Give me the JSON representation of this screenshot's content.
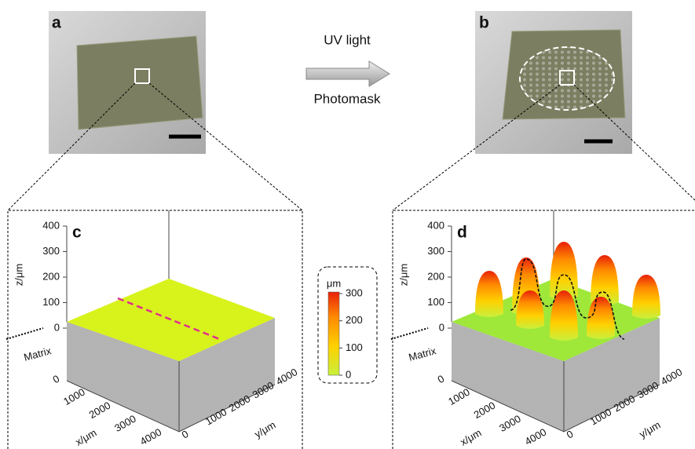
{
  "photos": [
    {
      "label": "a"
    },
    {
      "label": "b"
    }
  ],
  "arrow": {
    "top": "UV light",
    "bottom": "Photomask"
  },
  "plots": [
    {
      "label": "c",
      "z_label": "z/μm",
      "z_ticks": [
        0,
        100,
        200,
        300,
        400
      ],
      "zero_label": 0,
      "matrix_label": "Matrix",
      "x_label": "x/μm",
      "x_ticks": [
        0,
        1000,
        2000,
        3000,
        4000
      ],
      "y_label": "y/μm",
      "y_ticks": [
        0,
        1000,
        2000,
        3000,
        4000
      ]
    },
    {
      "label": "d",
      "z_label": "z/μm",
      "z_ticks": [
        0,
        100,
        200,
        300,
        400
      ],
      "zero_label": 0,
      "matrix_label": "Matrix",
      "x_label": "x/μm",
      "x_ticks": [
        0,
        1000,
        2000,
        3000,
        4000
      ],
      "y_label": "y/μm",
      "y_ticks": [
        0,
        1000,
        2000,
        3000,
        4000
      ]
    }
  ],
  "colorbar": {
    "unit": "μm",
    "ticks": [
      300,
      200,
      100,
      0
    ]
  }
}
